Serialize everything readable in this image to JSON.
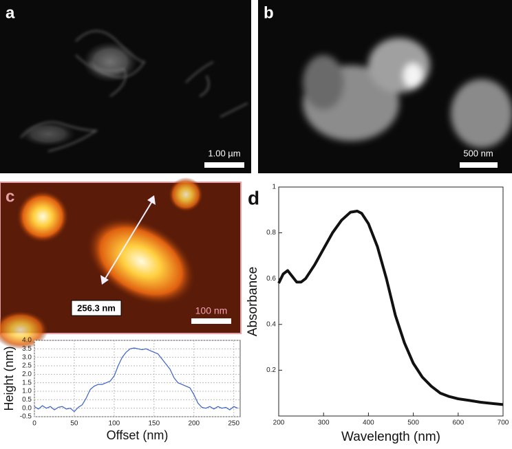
{
  "panels": [
    {
      "label": "a",
      "scale_bar": "1.00 µm"
    },
    {
      "label": "b",
      "scale_bar": "500 nm"
    },
    {
      "label": "c",
      "scale_bar": "100 nm",
      "annotation": "256.3 nm"
    },
    {
      "label": "d"
    }
  ],
  "chart_data": [
    {
      "type": "line",
      "xlabel": "Offset (nm)",
      "ylabel": "Height (nm)",
      "color": "#3a5fcd",
      "grid": true,
      "x": [
        0,
        5,
        10,
        15,
        20,
        25,
        30,
        35,
        40,
        45,
        50,
        55,
        60,
        65,
        70,
        75,
        80,
        85,
        90,
        95,
        100,
        105,
        110,
        115,
        120,
        125,
        130,
        135,
        140,
        145,
        150,
        155,
        160,
        165,
        170,
        175,
        180,
        185,
        190,
        195,
        200,
        205,
        210,
        215,
        220,
        225,
        230,
        235,
        240,
        245,
        250,
        255
      ],
      "values": [
        0.1,
        -0.05,
        0.15,
        0.0,
        0.1,
        -0.1,
        0.05,
        0.1,
        -0.05,
        0.0,
        -0.2,
        0.05,
        0.2,
        0.6,
        1.1,
        1.3,
        1.4,
        1.4,
        1.5,
        1.6,
        1.9,
        2.5,
        3.0,
        3.3,
        3.5,
        3.55,
        3.5,
        3.45,
        3.5,
        3.4,
        3.3,
        3.2,
        2.9,
        2.6,
        2.3,
        1.8,
        1.5,
        1.4,
        1.3,
        1.2,
        0.8,
        0.3,
        0.05,
        0.0,
        0.1,
        -0.05,
        0.1,
        0.0,
        0.05,
        -0.1,
        0.1,
        0.0
      ],
      "xlim": [
        0,
        258
      ],
      "xticks": [
        0,
        50,
        100,
        150,
        200,
        250
      ],
      "ylim": [
        -0.5,
        4.0
      ],
      "yticks": [
        -0.5,
        {
          "value": 0,
          "label": "0.0"
        },
        0.5,
        {
          "value": 1,
          "label": "1.0"
        },
        1.5,
        {
          "value": 2,
          "label": "2.0"
        },
        2.5,
        {
          "value": 3,
          "label": "3.0"
        },
        3.5,
        {
          "value": 4,
          "label": "4.0"
        }
      ]
    },
    {
      "type": "line",
      "xlabel": "Wavelength (nm)",
      "ylabel": "Absorbance",
      "color": "#111111",
      "grid": false,
      "x": [
        200,
        210,
        220,
        230,
        240,
        250,
        260,
        280,
        300,
        320,
        340,
        360,
        375,
        385,
        400,
        420,
        440,
        460,
        480,
        500,
        520,
        540,
        560,
        580,
        600,
        625,
        650,
        675,
        700
      ],
      "values": [
        0.58,
        0.62,
        0.635,
        0.61,
        0.585,
        0.585,
        0.6,
        0.66,
        0.73,
        0.8,
        0.855,
        0.89,
        0.895,
        0.885,
        0.84,
        0.74,
        0.6,
        0.44,
        0.32,
        0.23,
        0.17,
        0.13,
        0.1,
        0.085,
        0.075,
        0.068,
        0.06,
        0.055,
        0.05
      ],
      "xlim": [
        200,
        700
      ],
      "xticks": [
        200,
        300,
        400,
        500,
        600,
        700
      ],
      "ylim": [
        0,
        1
      ],
      "yticks": [
        0.2,
        0.4,
        0.6,
        0.8,
        1
      ]
    }
  ]
}
